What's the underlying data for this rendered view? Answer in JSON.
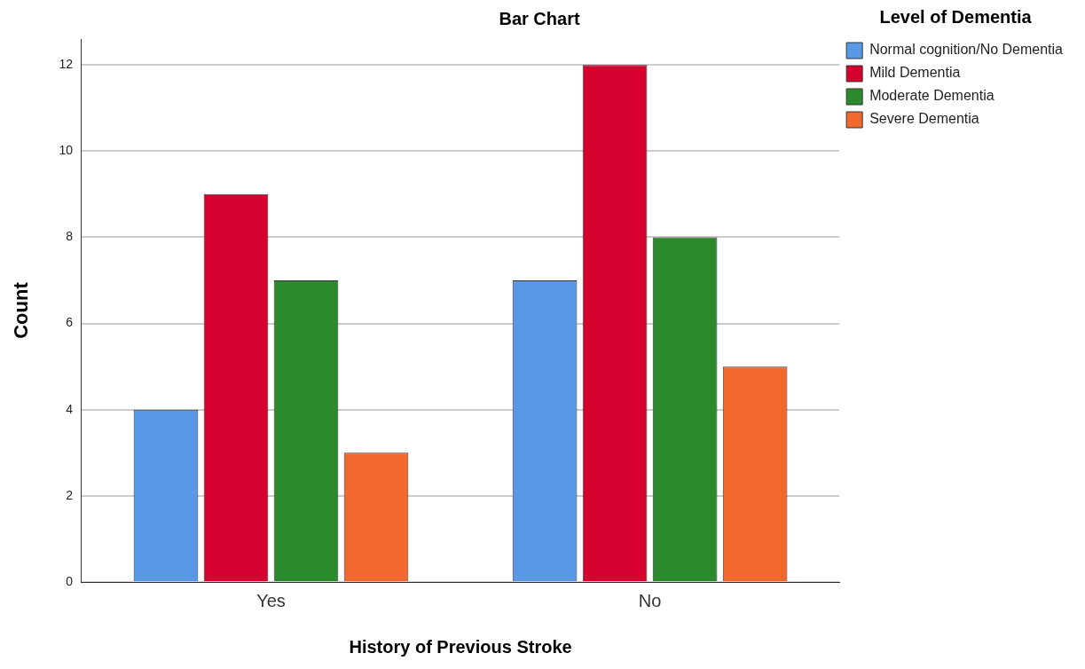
{
  "chart_data": {
    "type": "bar",
    "title": "Bar Chart",
    "xlabel": "History of Previous Stroke",
    "ylabel": "Count",
    "legend_title": "Level of Dementia",
    "categories": [
      "Yes",
      "No"
    ],
    "series": [
      {
        "name": "Normal cognition/No Dementia",
        "color": "#5898e6",
        "values": [
          4,
          7
        ]
      },
      {
        "name": "Mild Dementia",
        "color": "#d6002f",
        "values": [
          9,
          12
        ]
      },
      {
        "name": "Moderate Dementia",
        "color": "#2b8a2b",
        "values": [
          7,
          8
        ]
      },
      {
        "name": "Severe Dementia",
        "color": "#f2692d",
        "values": [
          3,
          5
        ]
      }
    ],
    "ylim": [
      0,
      12.6
    ],
    "yticks": [
      0,
      2,
      4,
      6,
      8,
      10,
      12
    ],
    "grid": "y",
    "legend": "top right"
  }
}
